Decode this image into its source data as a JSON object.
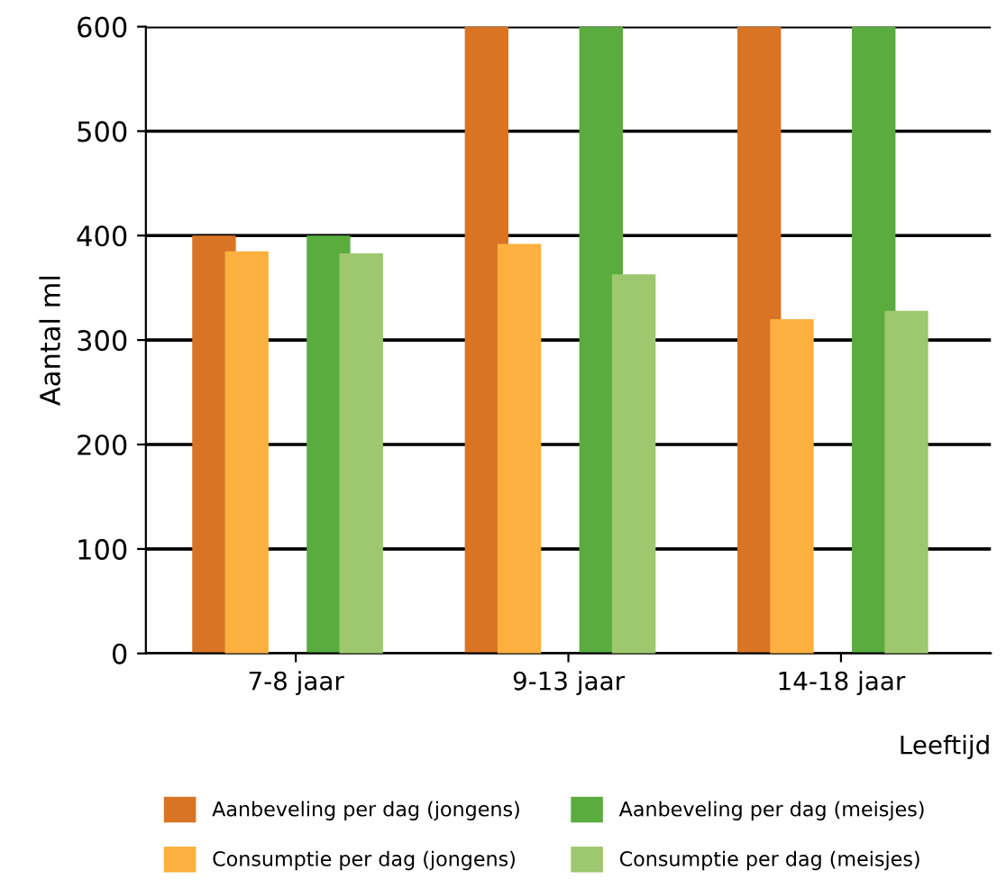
{
  "chart_data": {
    "type": "bar",
    "xlabel": "Leeftijd",
    "ylabel": "Aantal ml",
    "categories": [
      "7-8 jaar",
      "9-13 jaar",
      "14-18 jaar"
    ],
    "series": [
      {
        "name": "Aanbeveling per dag (jongens)",
        "color": "#d97425",
        "values": [
          400,
          600,
          600
        ]
      },
      {
        "name": "Consumptie per dag (jongens)",
        "color": "#fbb040",
        "values": [
          385,
          392,
          320
        ]
      },
      {
        "name": "Aanbeveling per dag (meisjes)",
        "color": "#5aac3f",
        "values": [
          400,
          600,
          600
        ]
      },
      {
        "name": "Consumptie per dag (meisjes)",
        "color": "#9dc86e",
        "values": [
          383,
          363,
          328
        ]
      }
    ],
    "ylim": [
      0,
      600
    ],
    "yticks": [
      0,
      100,
      200,
      300,
      400,
      500,
      600
    ],
    "grid": "y",
    "legend": "bottom"
  }
}
